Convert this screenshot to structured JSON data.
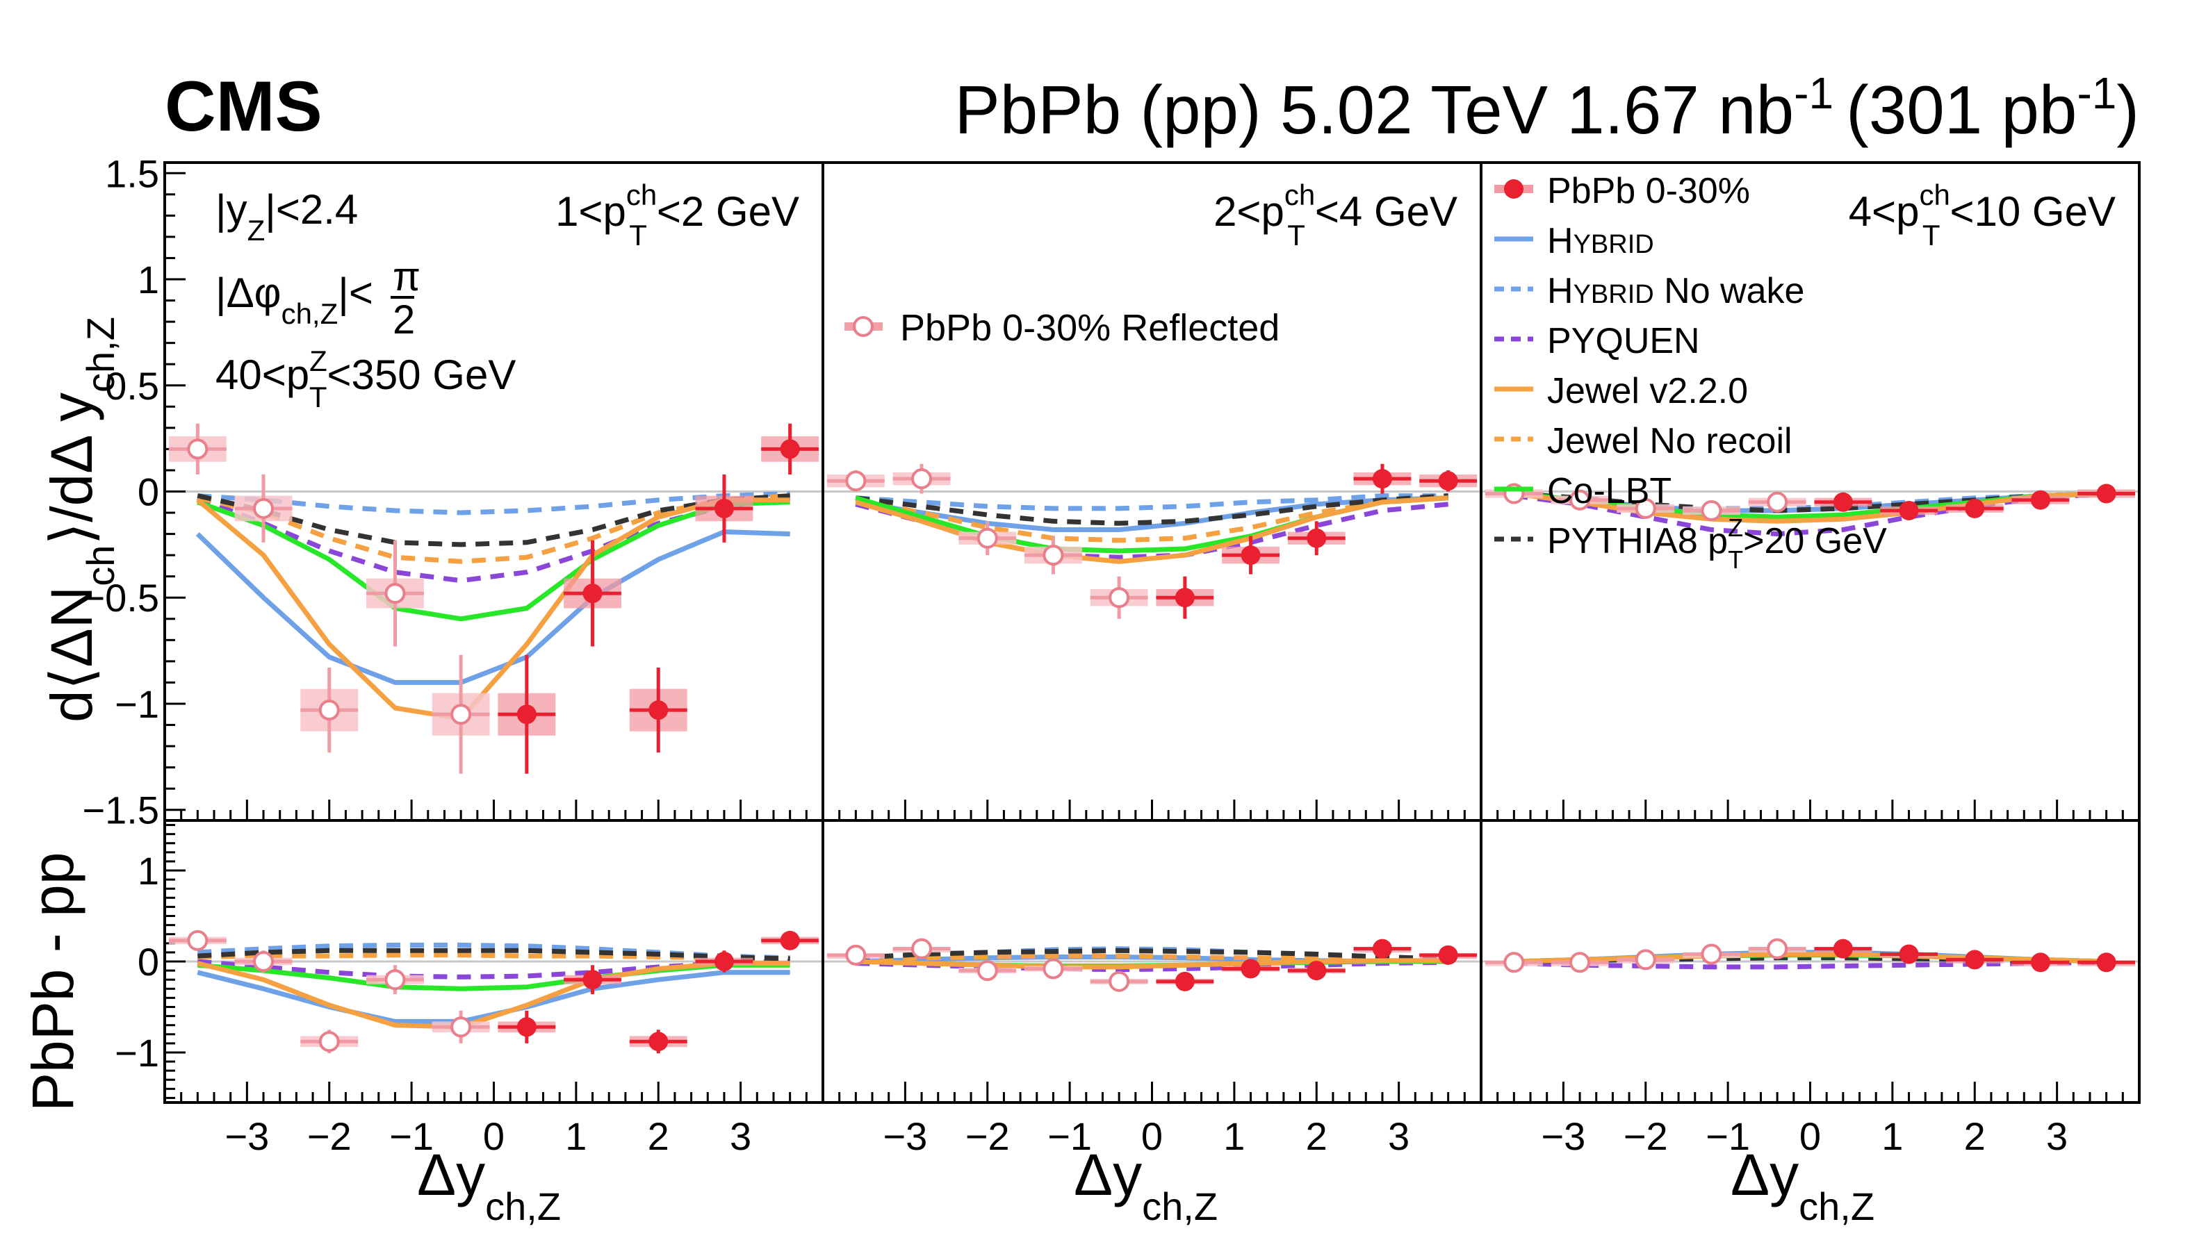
{
  "experiment_label": "CMS",
  "header": {
    "collision": "PbPb (pp) 5.02 TeV 1.67 nb",
    "lumi_exp_1": "-1",
    "lumi_pp": "(301 pb",
    "lumi_exp_2": "-1",
    "close_paren": ")"
  },
  "selection_cuts": {
    "yz": "|y",
    "yz_sub": "Z",
    "yz_tail": "|<2.4",
    "dphi": "|Δφ",
    "dphi_sub": "ch,Z",
    "dphi_tail": "|<",
    "pi": "π",
    "two": "2",
    "ptz": "40<p",
    "ptz_sup": "Z",
    "ptz_sub": "T",
    "ptz_tail": "<350 GeV"
  },
  "panel_labels": [
    {
      "pre": "1<p",
      "sup": "ch",
      "sub": "T",
      "post": "<2 GeV"
    },
    {
      "pre": "2<p",
      "sup": "ch",
      "sub": "T",
      "post": "<4 GeV"
    },
    {
      "pre": "4<p",
      "sup": "ch",
      "sub": "T",
      "post": "<10 GeV"
    }
  ],
  "reflected_legend": "PbPb 0-30% Reflected",
  "axis_titles": {
    "y_top_pre": "d⟨ΔN",
    "y_top_sub1": "ch",
    "y_top_mid": "⟩/dΔ y",
    "y_top_sub2": "ch,Z",
    "y_bottom": "PbPb - pp",
    "x_main": "Δy",
    "x_sub": "ch,Z"
  },
  "legend": [
    {
      "label": "PbPb 0-30%",
      "color": "#e8202f",
      "style": "marker"
    },
    {
      "label": "HYBRID",
      "color": "#6ea1e8",
      "style": "solid",
      "smallcaps": true
    },
    {
      "label": "HYBRID No wake",
      "color": "#6ea1e8",
      "style": "dashed",
      "smallcaps": true
    },
    {
      "label": "PYQUEN",
      "color": "#8a45d9",
      "style": "dashed"
    },
    {
      "label": "Jewel v2.2.0",
      "color": "#f5a142",
      "style": "solid"
    },
    {
      "label": "Jewel No recoil",
      "color": "#f5a142",
      "style": "dashed"
    },
    {
      "label": "Co-LBT",
      "color": "#28e628",
      "style": "solid"
    },
    {
      "label": "PYTHIA8 p_T^Z>20 GeV",
      "color": "#333333",
      "style": "dashed",
      "pythia": true
    }
  ],
  "legend_hybrid": {
    "h": "H",
    "ybrid": "YBRID",
    "nowake": " No wake"
  },
  "legend_pythia": {
    "pre": "PYTHIA8 p",
    "sup": "Z",
    "sub": "T",
    "post": ">20 GeV"
  },
  "chart_data": {
    "type": "scatter",
    "x_ticks": [
      -3,
      -2,
      -1,
      0,
      1,
      2,
      3
    ],
    "x_range": [
      -4.0,
      4.0
    ],
    "top_y_range": [
      -1.55,
      1.55
    ],
    "top_y_ticks": [
      -1.5,
      -1,
      -0.5,
      0,
      0.5,
      1,
      1.5
    ],
    "top_y_tick_labels": [
      "−1.5",
      "−1",
      "−0.5",
      "0",
      "0.5",
      "1",
      "1.5"
    ],
    "bottom_y_range": [
      -1.55,
      1.55
    ],
    "bottom_y_ticks": [
      -1,
      0,
      1
    ],
    "bottom_y_tick_labels": [
      "−1",
      "0",
      "1"
    ],
    "x_tick_labels": [
      "−3",
      "−2",
      "−1",
      "0",
      "1",
      "2",
      "3"
    ],
    "data_x": [
      0.4,
      1.2,
      2.0,
      2.8,
      3.6
    ],
    "model_x": [
      -3.6,
      -2.8,
      -2.0,
      -1.2,
      -0.4,
      0.4,
      1.2,
      2.0,
      2.8,
      3.6
    ],
    "panels": [
      {
        "top": {
          "data_y": [
            -1.05,
            -0.48,
            -1.03,
            -0.08,
            0.2
          ],
          "data_err": [
            0.28,
            0.25,
            0.2,
            0.16,
            0.12
          ],
          "data_sys": [
            0.1,
            0.07,
            0.1,
            0.06,
            0.06
          ],
          "models": {
            "hybrid": [
              -0.2,
              -0.5,
              -0.78,
              -0.9,
              -0.9,
              -0.78,
              -0.5,
              -0.32,
              -0.19,
              -0.2
            ],
            "hybrid_nowake": [
              -0.02,
              -0.04,
              -0.07,
              -0.09,
              -0.1,
              -0.09,
              -0.07,
              -0.04,
              -0.02,
              -0.01
            ],
            "pyquen": [
              -0.03,
              -0.15,
              -0.28,
              -0.38,
              -0.42,
              -0.38,
              -0.28,
              -0.15,
              -0.07,
              -0.03
            ],
            "jewel": [
              -0.04,
              -0.3,
              -0.72,
              -1.02,
              -1.07,
              -0.72,
              -0.3,
              -0.12,
              -0.04,
              -0.04
            ],
            "jewel_norecoil": [
              -0.03,
              -0.1,
              -0.22,
              -0.31,
              -0.33,
              -0.31,
              -0.22,
              -0.1,
              -0.04,
              -0.02
            ],
            "colbt": [
              -0.05,
              -0.16,
              -0.32,
              -0.55,
              -0.6,
              -0.55,
              -0.32,
              -0.16,
              -0.06,
              -0.05
            ],
            "pythia": [
              -0.02,
              -0.09,
              -0.18,
              -0.24,
              -0.25,
              -0.24,
              -0.18,
              -0.09,
              -0.04,
              -0.02
            ]
          }
        },
        "bottom": {
          "data_y": [
            -0.72,
            -0.2,
            -0.88,
            0.0,
            0.23
          ],
          "data_err": [
            0.18,
            0.16,
            0.13,
            0.12,
            0.08
          ],
          "data_sys": [
            0.06,
            0.05,
            0.06,
            0.04,
            0.04
          ],
          "models": {
            "hybrid": [
              -0.12,
              -0.3,
              -0.5,
              -0.66,
              -0.66,
              -0.5,
              -0.3,
              -0.2,
              -0.12,
              -0.12
            ],
            "hybrid_nowake": [
              0.1,
              0.14,
              0.17,
              0.18,
              0.18,
              0.17,
              0.14,
              0.1,
              0.06,
              0.04
            ],
            "pyquen": [
              0.0,
              -0.06,
              -0.12,
              -0.16,
              -0.17,
              -0.16,
              -0.12,
              -0.06,
              -0.02,
              0.0
            ],
            "jewel": [
              -0.02,
              -0.2,
              -0.48,
              -0.7,
              -0.72,
              -0.48,
              -0.2,
              -0.08,
              -0.02,
              -0.02
            ],
            "jewel_norecoil": [
              0.05,
              0.06,
              0.06,
              0.07,
              0.07,
              0.06,
              0.06,
              0.05,
              0.04,
              0.03
            ],
            "colbt": [
              -0.04,
              -0.1,
              -0.18,
              -0.28,
              -0.3,
              -0.28,
              -0.18,
              -0.1,
              -0.04,
              -0.04
            ],
            "pythia": [
              0.06,
              0.1,
              0.12,
              0.12,
              0.12,
              0.12,
              0.1,
              0.08,
              0.05,
              0.03
            ]
          }
        }
      },
      {
        "top": {
          "data_y": [
            -0.5,
            -0.3,
            -0.22,
            0.06,
            0.05
          ],
          "data_err": [
            0.1,
            0.09,
            0.08,
            0.07,
            0.05
          ],
          "data_sys": [
            0.04,
            0.04,
            0.03,
            0.03,
            0.03
          ],
          "models": {
            "hybrid": [
              -0.05,
              -0.1,
              -0.15,
              -0.18,
              -0.18,
              -0.15,
              -0.1,
              -0.06,
              -0.04,
              -0.03
            ],
            "hybrid_nowake": [
              -0.03,
              -0.05,
              -0.07,
              -0.08,
              -0.08,
              -0.07,
              -0.05,
              -0.04,
              -0.02,
              -0.02
            ],
            "pyquen": [
              -0.06,
              -0.14,
              -0.24,
              -0.3,
              -0.31,
              -0.3,
              -0.24,
              -0.16,
              -0.09,
              -0.06
            ],
            "jewel": [
              -0.05,
              -0.14,
              -0.24,
              -0.3,
              -0.33,
              -0.3,
              -0.22,
              -0.12,
              -0.05,
              -0.03
            ],
            "jewel_norecoil": [
              -0.04,
              -0.1,
              -0.17,
              -0.22,
              -0.23,
              -0.22,
              -0.17,
              -0.1,
              -0.05,
              -0.03
            ],
            "colbt": [
              -0.03,
              -0.12,
              -0.21,
              -0.27,
              -0.28,
              -0.27,
              -0.21,
              -0.12,
              -0.05,
              -0.03
            ],
            "pythia": [
              -0.03,
              -0.07,
              -0.11,
              -0.14,
              -0.15,
              -0.14,
              -0.11,
              -0.07,
              -0.04,
              -0.02
            ]
          }
        },
        "bottom": {
          "data_y": [
            -0.22,
            -0.08,
            -0.1,
            0.14,
            0.07
          ],
          "data_err": [
            0.08,
            0.07,
            0.06,
            0.05,
            0.04
          ],
          "data_sys": [
            0.03,
            0.03,
            0.03,
            0.02,
            0.02
          ],
          "models": {
            "hybrid": [
              0.0,
              0.02,
              0.04,
              0.05,
              0.05,
              0.04,
              0.02,
              0.01,
              0.0,
              0.0
            ],
            "hybrid_nowake": [
              0.04,
              0.08,
              0.1,
              0.13,
              0.14,
              0.13,
              0.1,
              0.08,
              0.05,
              0.03
            ],
            "pyquen": [
              -0.02,
              -0.04,
              -0.06,
              -0.08,
              -0.09,
              -0.08,
              -0.06,
              -0.04,
              -0.02,
              -0.01
            ],
            "jewel": [
              0.0,
              -0.02,
              -0.04,
              -0.06,
              -0.06,
              -0.04,
              -0.02,
              0.0,
              0.01,
              0.01
            ],
            "jewel_norecoil": [
              0.02,
              0.04,
              0.05,
              0.06,
              0.06,
              0.05,
              0.04,
              0.03,
              0.02,
              0.01
            ],
            "colbt": [
              0.0,
              -0.02,
              -0.04,
              -0.05,
              -0.05,
              -0.04,
              -0.02,
              -0.01,
              0.0,
              0.0
            ],
            "pythia": [
              0.04,
              0.08,
              0.1,
              0.11,
              0.12,
              0.11,
              0.1,
              0.08,
              0.05,
              0.03
            ]
          }
        }
      },
      {
        "top": {
          "data_y": [
            -0.05,
            -0.09,
            -0.08,
            -0.04,
            -0.01
          ],
          "data_err": [
            0.03,
            0.03,
            0.03,
            0.02,
            0.02
          ],
          "data_sys": [
            0.02,
            0.02,
            0.02,
            0.02,
            0.02
          ],
          "models": {
            "hybrid": [
              -0.01,
              -0.04,
              -0.07,
              -0.09,
              -0.09,
              -0.08,
              -0.06,
              -0.04,
              -0.02,
              -0.01
            ],
            "hybrid_nowake": [
              -0.01,
              -0.03,
              -0.06,
              -0.08,
              -0.08,
              -0.07,
              -0.05,
              -0.03,
              -0.02,
              -0.01
            ],
            "pyquen": [
              -0.02,
              -0.06,
              -0.12,
              -0.18,
              -0.2,
              -0.18,
              -0.12,
              -0.07,
              -0.03,
              -0.01
            ],
            "jewel": [
              -0.01,
              -0.05,
              -0.1,
              -0.13,
              -0.14,
              -0.13,
              -0.1,
              -0.06,
              -0.02,
              -0.01
            ],
            "jewel_norecoil": [
              -0.01,
              -0.05,
              -0.09,
              -0.12,
              -0.13,
              -0.12,
              -0.09,
              -0.05,
              -0.02,
              -0.01
            ],
            "colbt": [
              -0.01,
              -0.04,
              -0.08,
              -0.11,
              -0.12,
              -0.11,
              -0.08,
              -0.05,
              -0.02,
              -0.01
            ],
            "pythia": [
              -0.01,
              -0.03,
              -0.06,
              -0.08,
              -0.09,
              -0.08,
              -0.06,
              -0.04,
              -0.02,
              -0.01
            ]
          }
        },
        "bottom": {
          "data_y": [
            0.14,
            0.08,
            0.02,
            -0.01,
            -0.01
          ],
          "data_err": [
            0.03,
            0.03,
            0.02,
            0.02,
            0.02
          ],
          "data_sys": [
            0.02,
            0.02,
            0.02,
            0.02,
            0.02
          ],
          "models": {
            "hybrid": [
              0.0,
              0.02,
              0.05,
              0.08,
              0.1,
              0.1,
              0.08,
              0.05,
              0.02,
              0.0
            ],
            "hybrid_nowake": [
              0.0,
              0.02,
              0.04,
              0.06,
              0.08,
              0.08,
              0.06,
              0.04,
              0.02,
              0.0
            ],
            "pyquen": [
              -0.02,
              -0.04,
              -0.05,
              -0.06,
              -0.06,
              -0.05,
              -0.04,
              -0.03,
              -0.02,
              -0.01
            ],
            "jewel": [
              0.0,
              0.02,
              0.04,
              0.06,
              0.08,
              0.08,
              0.06,
              0.04,
              0.02,
              0.0
            ],
            "jewel_norecoil": [
              0.0,
              0.01,
              0.03,
              0.05,
              0.06,
              0.06,
              0.05,
              0.03,
              0.01,
              0.0
            ],
            "colbt": [
              0.0,
              0.02,
              0.04,
              0.06,
              0.07,
              0.07,
              0.06,
              0.04,
              0.02,
              0.0
            ],
            "pythia": [
              0.0,
              0.01,
              0.02,
              0.03,
              0.04,
              0.04,
              0.03,
              0.02,
              0.01,
              0.0
            ]
          }
        }
      }
    ]
  }
}
